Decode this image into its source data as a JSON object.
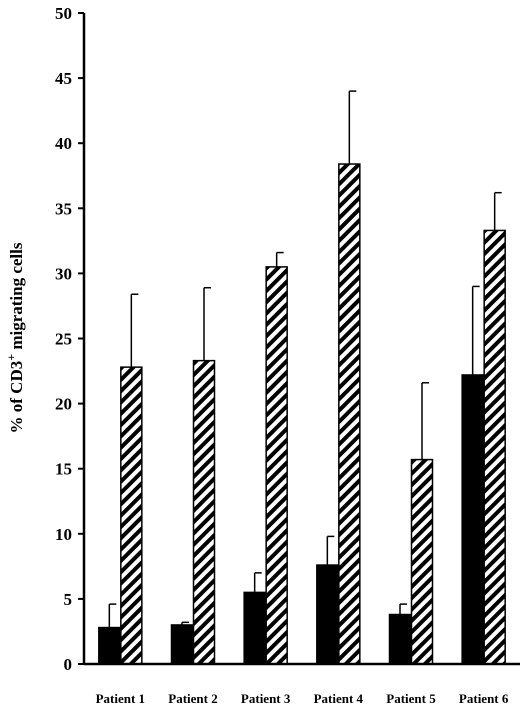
{
  "chart_data": {
    "type": "bar",
    "title": "",
    "xlabel": "",
    "ylabel": "% of CD3+ migrating cells",
    "ylabel_parts": [
      "% of CD3",
      "+",
      " migrating cells"
    ],
    "ylim": [
      0,
      50
    ],
    "yticks": [
      0,
      5,
      10,
      15,
      20,
      25,
      30,
      35,
      40,
      45,
      50
    ],
    "grid": false,
    "legend": "none",
    "categories": [
      "Patient 1",
      "Patient 2",
      "Patient 3",
      "Patient 4",
      "Patient 5",
      "Patient 6"
    ],
    "series": [
      {
        "fill": "solid",
        "color": "#000000",
        "values": [
          2.8,
          3.0,
          5.5,
          7.6,
          3.8,
          22.2
        ],
        "errors": [
          1.8,
          0.2,
          1.5,
          2.2,
          0.8,
          6.8
        ]
      },
      {
        "fill": "hatched",
        "color": "#000000",
        "values": [
          22.8,
          23.3,
          30.5,
          38.4,
          15.7,
          33.3
        ],
        "errors": [
          5.6,
          5.6,
          1.1,
          5.6,
          5.9,
          2.9
        ]
      }
    ]
  }
}
